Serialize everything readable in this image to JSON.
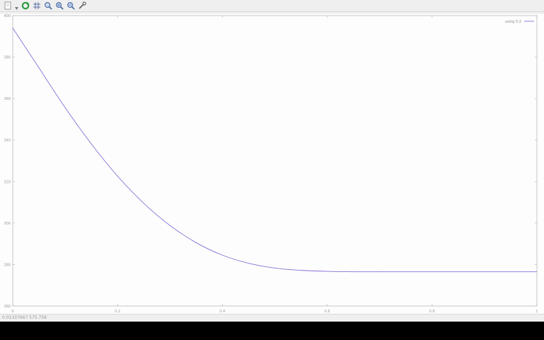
{
  "toolbar": {
    "items": [
      {
        "name": "export-icon"
      },
      {
        "name": "export-menu-icon"
      },
      {
        "name": "refresh-icon",
        "color": "#2e9e3e"
      },
      {
        "name": "grid-icon"
      },
      {
        "name": "zoom-icon"
      },
      {
        "name": "zoom-in-icon"
      },
      {
        "name": "zoom-out-icon"
      },
      {
        "name": "settings-wrench-icon"
      }
    ]
  },
  "status": {
    "coordinates": "0.01337667   575.758"
  },
  "chart_data": {
    "type": "line",
    "grid": false,
    "legend_placement": "top-right",
    "xlim": [
      0,
      1
    ],
    "ylim": [
      260,
      400
    ],
    "x_ticks": [
      "0",
      "0.2",
      "0.4",
      "0.6",
      "0.8",
      "1"
    ],
    "y_ticks": [
      "400",
      "380",
      "360",
      "340",
      "320",
      "300",
      "280",
      "260"
    ],
    "series": [
      {
        "name": "using 5:2",
        "color": "#8a6fd6",
        "x": [
          0,
          0.05,
          0.1,
          0.15,
          0.2,
          0.25,
          0.3,
          0.35,
          0.4,
          0.45,
          0.5,
          0.55,
          0.6,
          0.65,
          0.7,
          0.8,
          0.9,
          1.0
        ],
        "y": [
          394,
          374.8,
          355.6,
          338.1,
          322.6,
          309.5,
          298.8,
          290.5,
          284.5,
          280.6,
          278.3,
          277.2,
          276.7,
          276.5,
          276.5,
          276.5,
          276.5,
          276.5
        ]
      }
    ]
  }
}
